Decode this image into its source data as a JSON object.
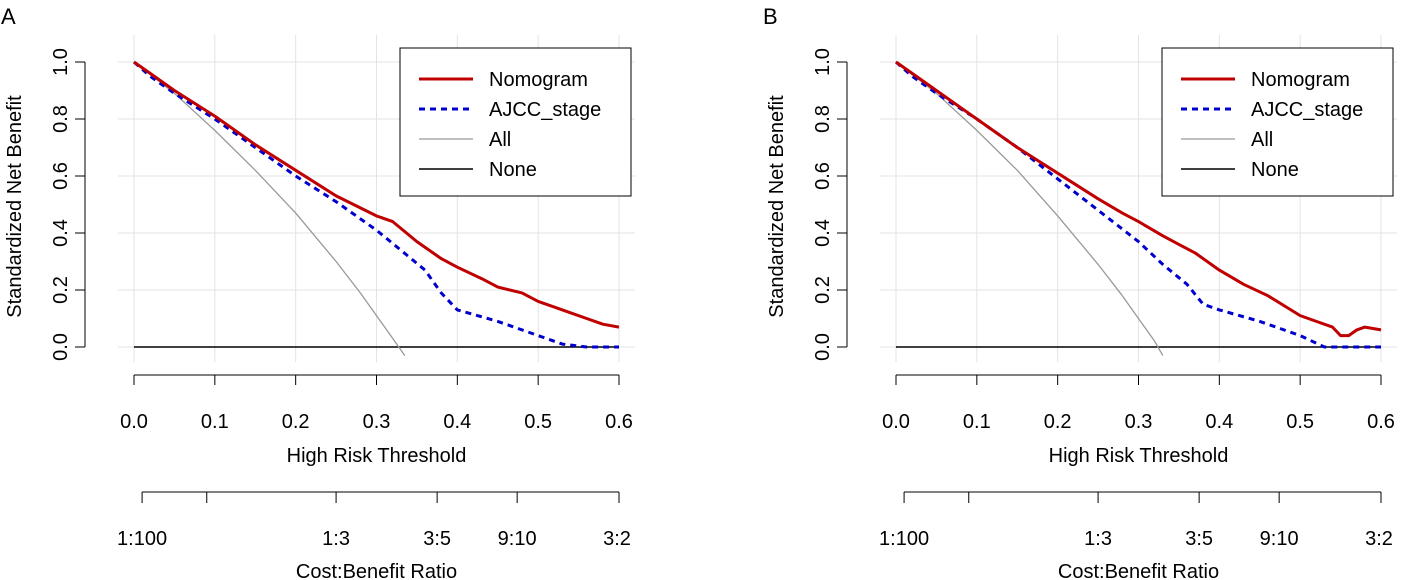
{
  "chart_data": [
    {
      "panel_label": "A",
      "type": "line",
      "xlabel": "High Risk Threshold",
      "ylabel": "Standardized Net Benefit",
      "xlim": [
        0.0,
        0.6
      ],
      "ylim": [
        -0.05,
        1.0
      ],
      "x_ticks": [
        0.0,
        0.1,
        0.2,
        0.3,
        0.4,
        0.5,
        0.6
      ],
      "x_tick_labels": [
        "0.0",
        "0.1",
        "0.2",
        "0.3",
        "0.4",
        "0.5",
        "0.6"
      ],
      "y_ticks": [
        0.0,
        0.2,
        0.4,
        0.6,
        0.8,
        1.0
      ],
      "y_tick_labels": [
        "0.0",
        "0.2",
        "0.4",
        "0.6",
        "0.8",
        "1.0"
      ],
      "grid": true,
      "legend_position": "top-right",
      "series": [
        {
          "name": "Nomogram",
          "color": "#c00000",
          "style": "solid",
          "x": [
            0.0,
            0.02,
            0.05,
            0.1,
            0.15,
            0.2,
            0.25,
            0.3,
            0.32,
            0.35,
            0.38,
            0.4,
            0.43,
            0.45,
            0.48,
            0.5,
            0.52,
            0.54,
            0.56,
            0.58,
            0.6
          ],
          "y": [
            1.0,
            0.96,
            0.9,
            0.81,
            0.71,
            0.62,
            0.53,
            0.46,
            0.44,
            0.37,
            0.31,
            0.28,
            0.24,
            0.21,
            0.19,
            0.16,
            0.14,
            0.12,
            0.1,
            0.08,
            0.07
          ]
        },
        {
          "name": "AJCC_stage",
          "color": "#0000cc",
          "style": "dashed",
          "x": [
            0.0,
            0.02,
            0.05,
            0.1,
            0.15,
            0.2,
            0.25,
            0.3,
            0.33,
            0.36,
            0.38,
            0.4,
            0.45,
            0.5,
            0.53,
            0.56,
            0.6
          ],
          "y": [
            1.0,
            0.95,
            0.89,
            0.8,
            0.7,
            0.6,
            0.51,
            0.41,
            0.34,
            0.27,
            0.19,
            0.13,
            0.09,
            0.04,
            0.01,
            0.0,
            0.0
          ]
        },
        {
          "name": "All",
          "color": "#999999",
          "style": "solid",
          "x": [
            0.0,
            0.05,
            0.1,
            0.15,
            0.2,
            0.25,
            0.28,
            0.3,
            0.32,
            0.335
          ],
          "y": [
            1.0,
            0.89,
            0.76,
            0.62,
            0.47,
            0.3,
            0.19,
            0.11,
            0.03,
            -0.03
          ]
        },
        {
          "name": "None",
          "color": "#000000",
          "style": "solid",
          "x": [
            0.0,
            0.6
          ],
          "y": [
            0.0,
            0.0
          ]
        }
      ],
      "cost_benefit": {
        "label": "Cost:Benefit Ratio",
        "ticks": [
          0.01,
          0.09,
          0.25,
          0.375,
          0.474,
          0.6
        ],
        "labels": [
          "1:100",
          "",
          "1:3",
          "3:5",
          "9:10",
          "3:2"
        ]
      }
    },
    {
      "panel_label": "B",
      "type": "line",
      "xlabel": "High Risk Threshold",
      "ylabel": "Standardized Net Benefit",
      "xlim": [
        0.0,
        0.6
      ],
      "ylim": [
        -0.05,
        1.0
      ],
      "x_ticks": [
        0.0,
        0.1,
        0.2,
        0.3,
        0.4,
        0.5,
        0.6
      ],
      "x_tick_labels": [
        "0.0",
        "0.1",
        "0.2",
        "0.3",
        "0.4",
        "0.5",
        "0.6"
      ],
      "y_ticks": [
        0.0,
        0.2,
        0.4,
        0.6,
        0.8,
        1.0
      ],
      "y_tick_labels": [
        "0.0",
        "0.2",
        "0.4",
        "0.6",
        "0.8",
        "1.0"
      ],
      "grid": true,
      "legend_position": "top-right",
      "series": [
        {
          "name": "Nomogram",
          "color": "#c00000",
          "style": "solid",
          "x": [
            0.0,
            0.02,
            0.05,
            0.1,
            0.15,
            0.2,
            0.25,
            0.28,
            0.3,
            0.33,
            0.35,
            0.37,
            0.4,
            0.43,
            0.46,
            0.5,
            0.52,
            0.54,
            0.55,
            0.56,
            0.57,
            0.58,
            0.6
          ],
          "y": [
            1.0,
            0.96,
            0.9,
            0.8,
            0.7,
            0.61,
            0.52,
            0.47,
            0.44,
            0.39,
            0.36,
            0.33,
            0.27,
            0.22,
            0.18,
            0.11,
            0.09,
            0.07,
            0.04,
            0.04,
            0.06,
            0.07,
            0.06
          ]
        },
        {
          "name": "AJCC_stage",
          "color": "#0000cc",
          "style": "dashed",
          "x": [
            0.0,
            0.02,
            0.05,
            0.1,
            0.15,
            0.2,
            0.25,
            0.3,
            0.33,
            0.36,
            0.38,
            0.4,
            0.45,
            0.5,
            0.53,
            0.56,
            0.6
          ],
          "y": [
            1.0,
            0.95,
            0.89,
            0.8,
            0.7,
            0.59,
            0.48,
            0.37,
            0.29,
            0.22,
            0.15,
            0.13,
            0.09,
            0.04,
            0.0,
            0.0,
            0.0
          ]
        },
        {
          "name": "All",
          "color": "#999999",
          "style": "solid",
          "x": [
            0.0,
            0.05,
            0.1,
            0.15,
            0.2,
            0.25,
            0.28,
            0.3,
            0.32,
            0.33
          ],
          "y": [
            1.0,
            0.89,
            0.76,
            0.62,
            0.46,
            0.29,
            0.18,
            0.1,
            0.02,
            -0.03
          ]
        },
        {
          "name": "None",
          "color": "#000000",
          "style": "solid",
          "x": [
            0.0,
            0.6
          ],
          "y": [
            0.0,
            0.0
          ]
        }
      ],
      "cost_benefit": {
        "label": "Cost:Benefit Ratio",
        "ticks": [
          0.01,
          0.09,
          0.25,
          0.375,
          0.474,
          0.6
        ],
        "labels": [
          "1:100",
          "",
          "1:3",
          "3:5",
          "9:10",
          "3:2"
        ]
      }
    }
  ]
}
